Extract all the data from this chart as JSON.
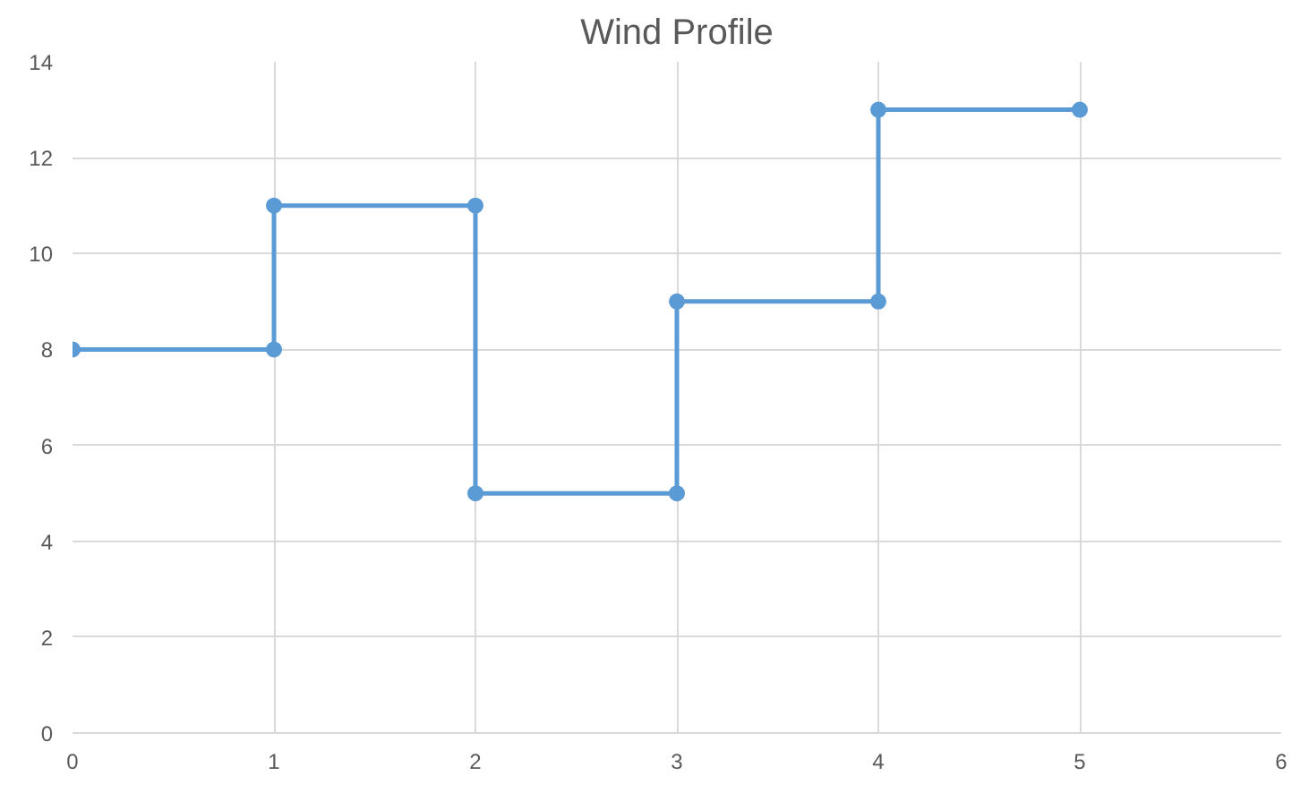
{
  "chart_data": {
    "type": "line",
    "title": "Wind Profile",
    "x": [
      0,
      1,
      1,
      2,
      2,
      3,
      3,
      4,
      4,
      5
    ],
    "series": [
      {
        "color": "#5b9bd5",
        "values": [
          8,
          8,
          11,
          11,
          5,
          5,
          9,
          9,
          13,
          13
        ]
      }
    ],
    "xlim": [
      0,
      6
    ],
    "xticks": [
      0,
      1,
      2,
      3,
      4,
      5,
      6
    ],
    "ylim": [
      0,
      14
    ],
    "yticks": [
      0,
      2,
      4,
      6,
      8,
      10,
      12,
      14
    ],
    "grid": true,
    "marker": "circle",
    "line_style": "solid"
  }
}
